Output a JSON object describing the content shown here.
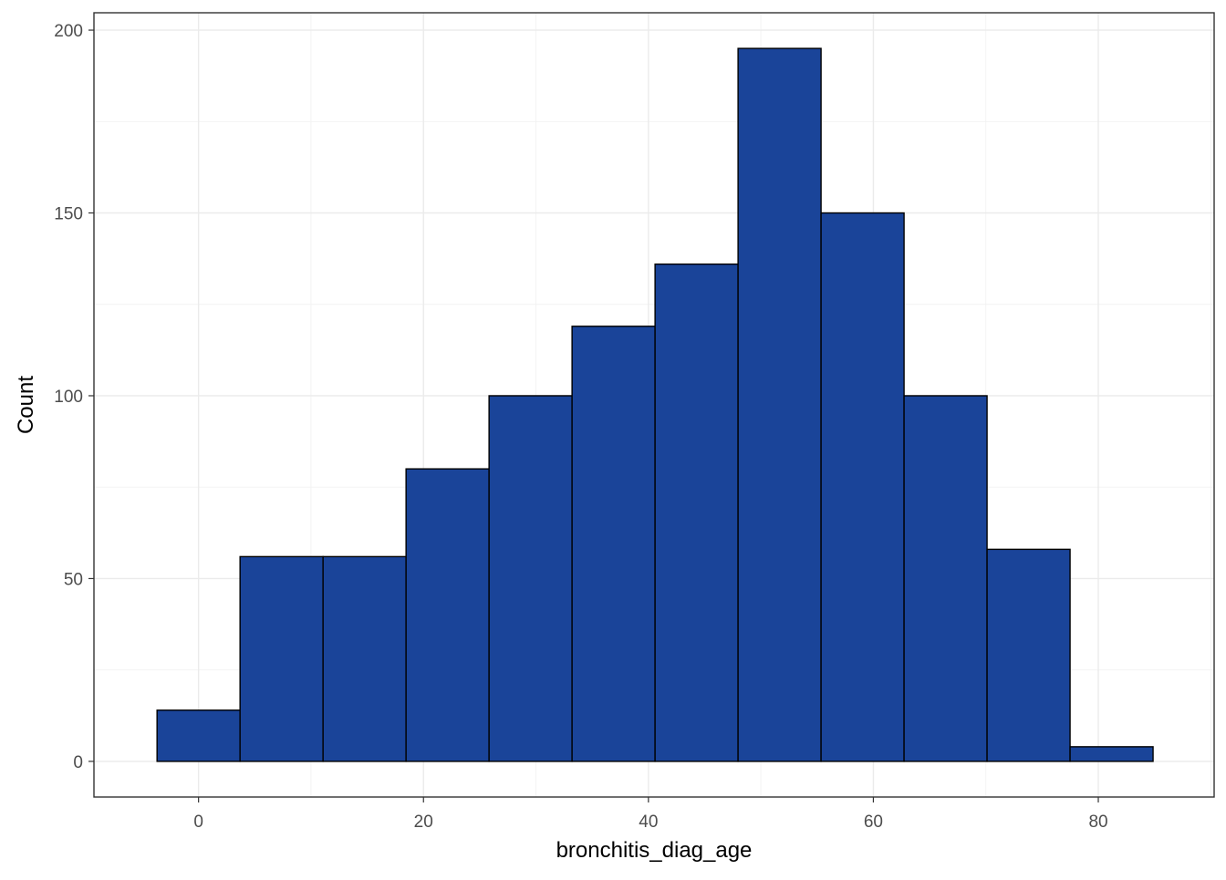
{
  "chart_data": {
    "type": "bar",
    "subtype": "histogram",
    "xlabel": "bronchitis_diag_age",
    "ylabel": "Count",
    "xlim": [
      -9.3,
      90.3
    ],
    "ylim": [
      -9.75,
      204.75
    ],
    "x_ticks": [
      0,
      20,
      40,
      60,
      80
    ],
    "y_ticks": [
      0,
      50,
      100,
      150,
      200
    ],
    "bin_width": 7.38,
    "bins": [
      {
        "x0": -3.69,
        "x1": 3.69,
        "count": 14
      },
      {
        "x0": 3.69,
        "x1": 11.07,
        "count": 56
      },
      {
        "x0": 11.07,
        "x1": 18.45,
        "count": 56
      },
      {
        "x0": 18.45,
        "x1": 25.83,
        "count": 80
      },
      {
        "x0": 25.83,
        "x1": 33.21,
        "count": 100
      },
      {
        "x0": 33.21,
        "x1": 40.59,
        "count": 119
      },
      {
        "x0": 40.59,
        "x1": 47.97,
        "count": 136
      },
      {
        "x0": 47.97,
        "x1": 55.35,
        "count": 195
      },
      {
        "x0": 55.35,
        "x1": 62.73,
        "count": 150
      },
      {
        "x0": 62.73,
        "x1": 70.11,
        "count": 100
      },
      {
        "x0": 70.11,
        "x1": 77.49,
        "count": 58
      },
      {
        "x0": 77.49,
        "x1": 84.87,
        "count": 4
      }
    ],
    "bar_fill": "#1a4499",
    "bar_outline": "#000000",
    "grid": true,
    "theme": "bw",
    "legend": "none"
  }
}
